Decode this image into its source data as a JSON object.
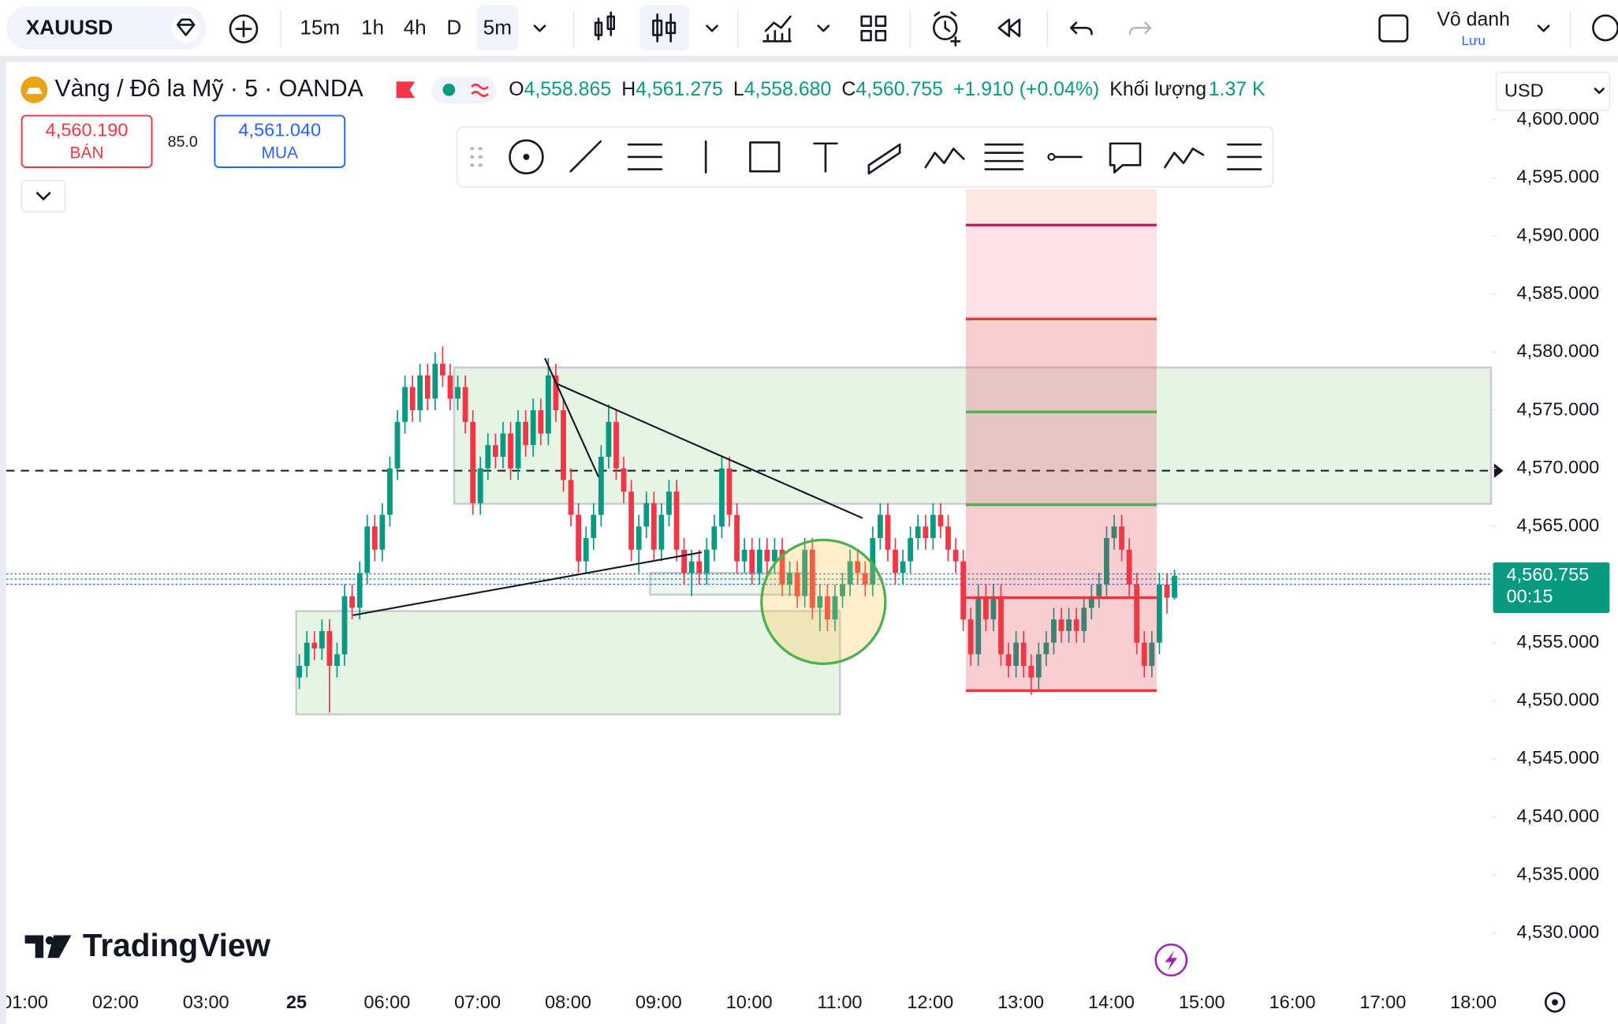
{
  "toolbar": {
    "symbol": "XAUUSD",
    "intervals": [
      "15m",
      "1h",
      "4h",
      "D",
      "5m"
    ],
    "layout_name": "Vô danh",
    "save": "Lưu"
  },
  "legend": {
    "title": "Vàng / Đô la Mỹ · 5 · OANDA",
    "open_label": "O",
    "open": "4,558.865",
    "high_label": "H",
    "high": "4,561.275",
    "low_label": "L",
    "low": "4,558.680",
    "close_label": "C",
    "close": "4,560.755",
    "change": "+1.910 (+0.04%)",
    "volume_label": "Khối lượng",
    "volume": "1.37 K"
  },
  "trade": {
    "sell_price": "4,560.190",
    "sell_label": "BÁN",
    "spread": "85.0",
    "buy_price": "4,561.040",
    "buy_label": "MUA"
  },
  "currency": "USD",
  "logo": "TradingView",
  "chart_data": {
    "type": "candlestick",
    "ylim": [
      4526.8,
      4604.8
    ],
    "yticks": [
      {
        "value": 4600,
        "label": "4,600.000"
      },
      {
        "value": 4595,
        "label": "4,595.000"
      },
      {
        "value": 4590,
        "label": "4,590.000"
      },
      {
        "value": 4585,
        "label": "4,585.000"
      },
      {
        "value": 4580,
        "label": "4,580.000"
      },
      {
        "value": 4575,
        "label": "4,575.000"
      },
      {
        "value": 4570,
        "label": "4,570.000"
      },
      {
        "value": 4565,
        "label": "4,565.000"
      },
      {
        "value": 4555,
        "label": "4,555.000"
      },
      {
        "value": 4550,
        "label": "4,550.000"
      },
      {
        "value": 4545,
        "label": "4,545.000"
      },
      {
        "value": 4540,
        "label": "4,540.000"
      },
      {
        "value": 4535,
        "label": "4,535.000"
      },
      {
        "value": 4530,
        "label": "4,530.000"
      }
    ],
    "last_price": {
      "value": 4560.755,
      "label": "4,560.755",
      "countdown": "00:15"
    },
    "categories": [
      "01:00",
      "02:00",
      "03:00",
      "25",
      "06:00",
      "07:00",
      "08:00",
      "09:00",
      "10:00",
      "11:00",
      "12:00",
      "13:00",
      "14:00",
      "15:00",
      "16:00",
      "17:00",
      "18:00"
    ],
    "up_color": "#089981",
    "down_color": "#f23645",
    "candles": {
      "open": [
        4552,
        4553,
        4555,
        4554.5,
        4556,
        4553,
        4554,
        4559,
        4558,
        4561,
        4565,
        4563,
        4566,
        4570,
        4574,
        4577,
        4575,
        4578,
        4576,
        4579,
        4578,
        4576,
        4577,
        4574,
        4567,
        4570,
        4572,
        4571,
        4573,
        4570,
        4574,
        4572,
        4575,
        4573,
        4578,
        4575,
        4569,
        4566,
        4562,
        4564,
        4566,
        4571,
        4574,
        4570,
        4568,
        4563,
        4565,
        4567,
        4563,
        4566,
        4568,
        4563,
        4561,
        4562,
        4561,
        4563,
        4565,
        4570,
        4566,
        4562,
        4563,
        4561,
        4563,
        4562,
        4563,
        4560,
        4561,
        4559,
        4563,
        4558,
        4559,
        4557,
        4559,
        4560,
        4562,
        4561,
        4560,
        4564,
        4566,
        4563,
        4561,
        4562,
        4564,
        4565,
        4564,
        4566,
        4565,
        4563,
        4562,
        4557,
        4554,
        4559,
        4557,
        4559,
        4554,
        4553,
        4555,
        4553,
        4552,
        4554,
        4555,
        4557,
        4556,
        4557,
        4556,
        4558,
        4559,
        4560,
        4564,
        4565,
        4563,
        4560,
        4555,
        4553,
        4555,
        4560,
        4558.865
      ],
      "high": [
        4554,
        4556,
        4556,
        4557,
        4557,
        4555,
        4560,
        4560,
        4562,
        4566,
        4566,
        4567,
        4571,
        4575,
        4578,
        4578,
        4579,
        4579,
        4580,
        4580.5,
        4579,
        4578,
        4578,
        4575,
        4571,
        4573,
        4573,
        4574,
        4574,
        4575,
        4575,
        4576,
        4576,
        4579.5,
        4579,
        4576,
        4570,
        4567,
        4565,
        4567,
        4572,
        4575.5,
        4575,
        4571,
        4569,
        4566,
        4568,
        4568,
        4567,
        4569,
        4569,
        4564,
        4563,
        4563,
        4564,
        4566,
        4571,
        4571,
        4567,
        4564,
        4564,
        4564,
        4564,
        4564,
        4564,
        4562,
        4562,
        4564,
        4564,
        4560,
        4560,
        4560,
        4561,
        4563,
        4563,
        4562,
        4565,
        4567,
        4567,
        4564,
        4563,
        4565,
        4566,
        4566,
        4567,
        4567,
        4566,
        4564,
        4563,
        4558,
        4560,
        4560,
        4560,
        4560,
        4555,
        4556,
        4556,
        4554,
        4555,
        4556,
        4558,
        4558,
        4558,
        4558,
        4559,
        4560,
        4561,
        4565,
        4566,
        4566,
        4564,
        4561,
        4556,
        4556,
        4561,
        4561,
        4561.275
      ],
      "low": [
        4551,
        4552,
        4553.5,
        4553.5,
        4549,
        4552,
        4553,
        4557,
        4557,
        4560,
        4562,
        4562,
        4565,
        4569,
        4573,
        4574,
        4574,
        4575,
        4575,
        4577,
        4575,
        4575,
        4573,
        4566,
        4566,
        4569,
        4570,
        4570,
        4569,
        4569,
        4571,
        4571,
        4572,
        4572,
        4574,
        4568,
        4565,
        4561,
        4561,
        4563,
        4565,
        4570,
        4569,
        4567,
        4562,
        4561,
        4564,
        4562,
        4562,
        4565,
        4562,
        4560,
        4559,
        4560,
        4560,
        4562,
        4564,
        4565,
        4561,
        4561,
        4560,
        4560,
        4561,
        4561,
        4559,
        4559,
        4558,
        4558,
        4557,
        4556,
        4556,
        4556,
        4558,
        4559,
        4560,
        4559,
        4559,
        4563,
        4562,
        4560,
        4560,
        4561,
        4563,
        4563,
        4563,
        4564,
        4562,
        4561,
        4556,
        4553,
        4553,
        4556,
        4556,
        4553,
        4552,
        4552,
        4552,
        4550.5,
        4551,
        4553,
        4554,
        4555,
        4555,
        4555,
        4555,
        4557,
        4558,
        4559,
        4563,
        4562,
        4559,
        4554,
        4552,
        4552,
        4554,
        4557.5,
        4558.68
      ],
      "close": [
        4553,
        4555,
        4554.5,
        4556,
        4553,
        4554,
        4559,
        4558,
        4561,
        4565,
        4563,
        4566,
        4570,
        4574,
        4577,
        4575,
        4578,
        4576,
        4579,
        4578,
        4576,
        4577,
        4574,
        4567,
        4570,
        4572,
        4571,
        4573,
        4570,
        4574,
        4572,
        4575,
        4573,
        4578,
        4575,
        4569,
        4566,
        4562,
        4564,
        4566,
        4571,
        4574,
        4570,
        4568,
        4563,
        4565,
        4567,
        4563,
        4566,
        4568,
        4563,
        4561,
        4562,
        4561,
        4563,
        4565,
        4570,
        4566,
        4562,
        4563,
        4561,
        4563,
        4562,
        4563,
        4560,
        4561,
        4559,
        4563,
        4558,
        4559,
        4557,
        4559,
        4560,
        4562,
        4561,
        4560,
        4564,
        4566,
        4563,
        4561,
        4562,
        4564,
        4565,
        4564,
        4566,
        4565,
        4563,
        4562,
        4557,
        4554,
        4559,
        4557,
        4559,
        4554,
        4553,
        4555,
        4553,
        4552,
        4554,
        4555,
        4557,
        4556,
        4557,
        4556,
        4558,
        4559,
        4560,
        4564,
        4565,
        4563,
        4560,
        4555,
        4553,
        4555,
        4560,
        4558.865,
        4560.755
      ]
    }
  }
}
